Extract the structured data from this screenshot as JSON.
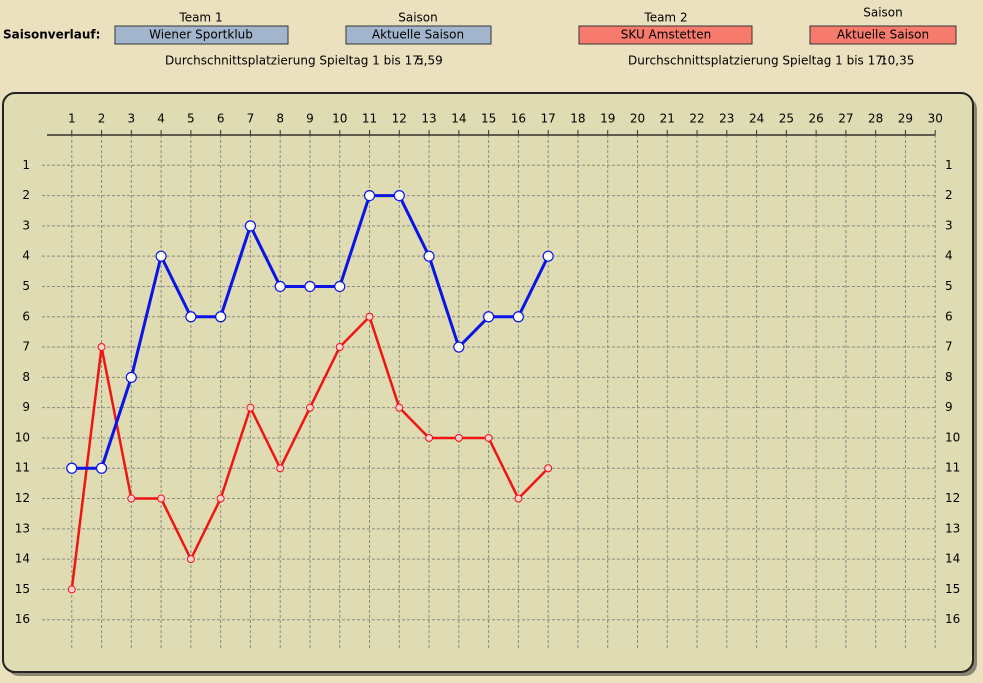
{
  "header": {
    "label": "Saisonverlauf:",
    "team1_label": "Team 1",
    "season1_label": "Saison",
    "season1": "Aktuelle Saison",
    "team2_label": "Team 2",
    "season2_label": "Saison",
    "season2": "Aktuelle Saison",
    "avg1_label": "Durchschnittsplatzierung Spieltag 1 bis 17:",
    "avg1": "5,59",
    "avg2_label": "Durchschnittsplatzierung Spieltag 1 bis 17:",
    "avg2": "10,35"
  },
  "chart_data": {
    "type": "line",
    "x": [
      1,
      2,
      3,
      4,
      5,
      6,
      7,
      8,
      9,
      10,
      11,
      12,
      13,
      14,
      15,
      16,
      17
    ],
    "series": [
      {
        "name": "Wiener Sportklub",
        "color": "#0a14e6",
        "values": [
          11,
          11,
          8,
          4,
          6,
          6,
          3,
          5,
          5,
          5,
          2,
          2,
          4,
          7,
          6,
          6,
          4
        ]
      },
      {
        "name": "SKU Amstetten",
        "color": "#f01414",
        "values": [
          15,
          7,
          12,
          12,
          14,
          12,
          9,
          11,
          9,
          7,
          6,
          9,
          10,
          10,
          10,
          12,
          11
        ]
      }
    ],
    "xlim": [
      0,
      31
    ],
    "ylim": [
      17,
      0
    ],
    "xticks": [
      1,
      2,
      3,
      4,
      5,
      6,
      7,
      8,
      9,
      10,
      11,
      12,
      13,
      14,
      15,
      16,
      17,
      18,
      19,
      20,
      21,
      22,
      23,
      24,
      25,
      26,
      27,
      28,
      29,
      30
    ],
    "yticks": [
      1,
      2,
      3,
      4,
      5,
      6,
      7,
      8,
      9,
      10,
      11,
      12,
      13,
      14,
      15,
      16
    ],
    "grid": true
  }
}
